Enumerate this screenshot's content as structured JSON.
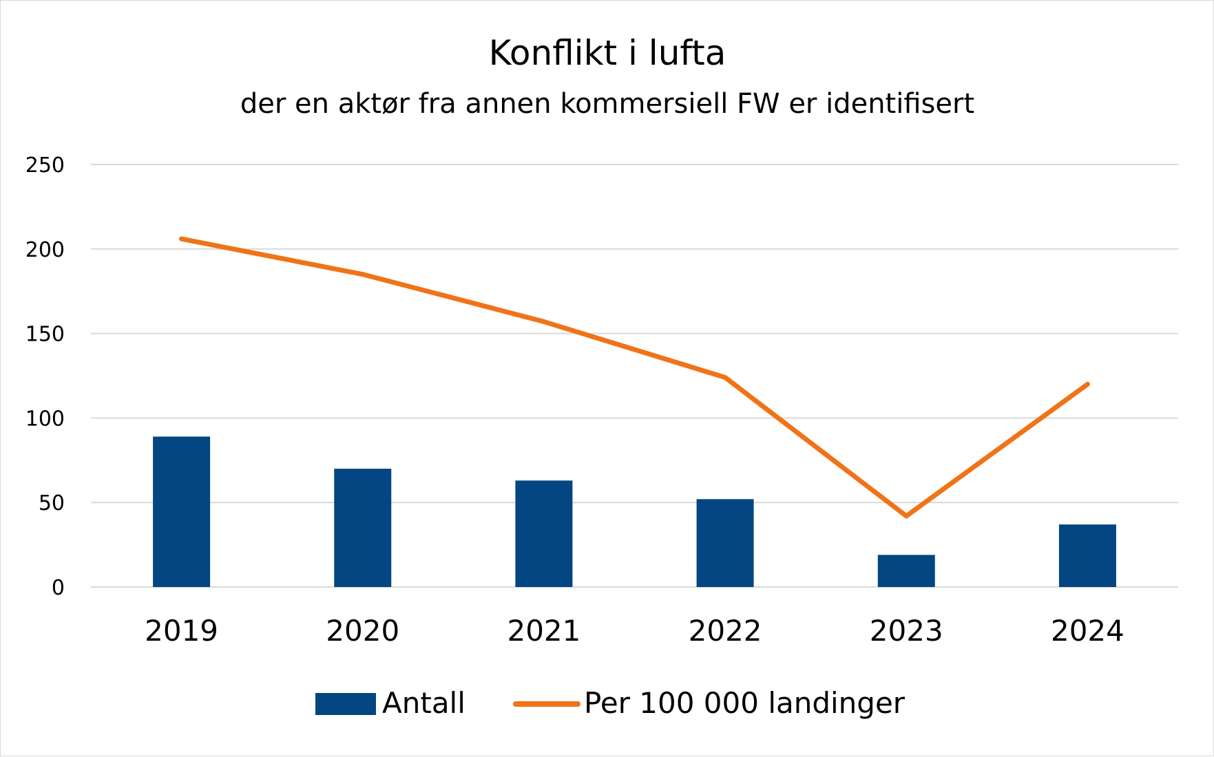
{
  "chart_data": {
    "type": "bar",
    "title": "Konflikt i lufta",
    "subtitle": "der en aktør fra annen kommersiell FW er identifisert",
    "categories": [
      "2019",
      "2020",
      "2021",
      "2022",
      "2023",
      "2024"
    ],
    "series": [
      {
        "name": "Antall",
        "type": "bar",
        "color": "#034681",
        "values": [
          89,
          70,
          63,
          52,
          19,
          37
        ]
      },
      {
        "name": "Per 100 000 landinger",
        "type": "line",
        "color": "#f07317",
        "values": [
          206,
          185,
          157,
          124,
          42,
          120
        ]
      }
    ],
    "ylim": [
      0,
      250
    ],
    "yticks": [
      0,
      50,
      100,
      150,
      200,
      250
    ],
    "grid": true,
    "legend_position": "bottom"
  }
}
